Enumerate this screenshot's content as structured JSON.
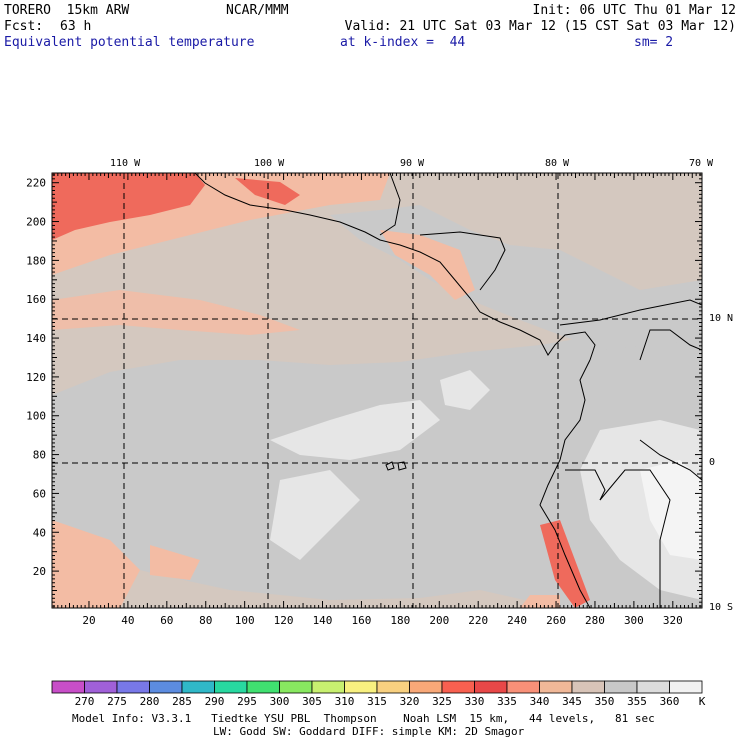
{
  "header": {
    "model": "TORERO  15km ARW",
    "center": "NCAR/MMM",
    "init": "Init: 06 UTC Thu 01 Mar 12",
    "fcst_label": "Fcst:",
    "fcst_value": "63 h",
    "valid": "Valid: 21 UTC Sat 03 Mar 12 (15 CST Sat 03 Mar 12)",
    "field": "Equivalent potential temperature",
    "level": "at k-index =  44",
    "smoothing": "sm= 2"
  },
  "map": {
    "top_lon_labels": [
      "110 W",
      "100 W",
      "90 W",
      "80 W",
      "70 W"
    ],
    "right_lat_labels": [
      "10 N",
      "0",
      "10 S"
    ],
    "left_y_ticks": [
      "20",
      "40",
      "60",
      "80",
      "100",
      "120",
      "140",
      "160",
      "180",
      "200",
      "220"
    ],
    "bottom_x_ticks": [
      "20",
      "40",
      "60",
      "80",
      "100",
      "120",
      "140",
      "160",
      "180",
      "200",
      "220",
      "240",
      "260",
      "280",
      "300",
      "320"
    ],
    "grid_range": {
      "x": [
        1,
        335
      ],
      "y": [
        1,
        225
      ]
    }
  },
  "colorbar": {
    "labels": [
      "270",
      "275",
      "280",
      "285",
      "290",
      "295",
      "300",
      "305",
      "310",
      "315",
      "320",
      "325",
      "330",
      "335",
      "340",
      "345",
      "350",
      "355",
      "360"
    ],
    "unit": "K",
    "colors": [
      "#c84ec8",
      "#a060d8",
      "#7878e8",
      "#5c8ce0",
      "#30b8c8",
      "#28d8a0",
      "#40e070",
      "#88e860",
      "#c8f070",
      "#f8f080",
      "#f8d080",
      "#f8a878",
      "#f86050",
      "#e84848",
      "#f89078",
      "#f0b898",
      "#d8c4b8",
      "#c8c8c8",
      "#dcdcdc",
      "#f2f2f2"
    ]
  },
  "footer": {
    "line1": "Model Info: V3.3.1   Tiedtke YSU PBL  Thompson    Noah LSM  15 km,   44 levels,   81 sec",
    "line2": "LW: Godd SW: Goddard DIFF: simple KM: 2D Smagor"
  }
}
